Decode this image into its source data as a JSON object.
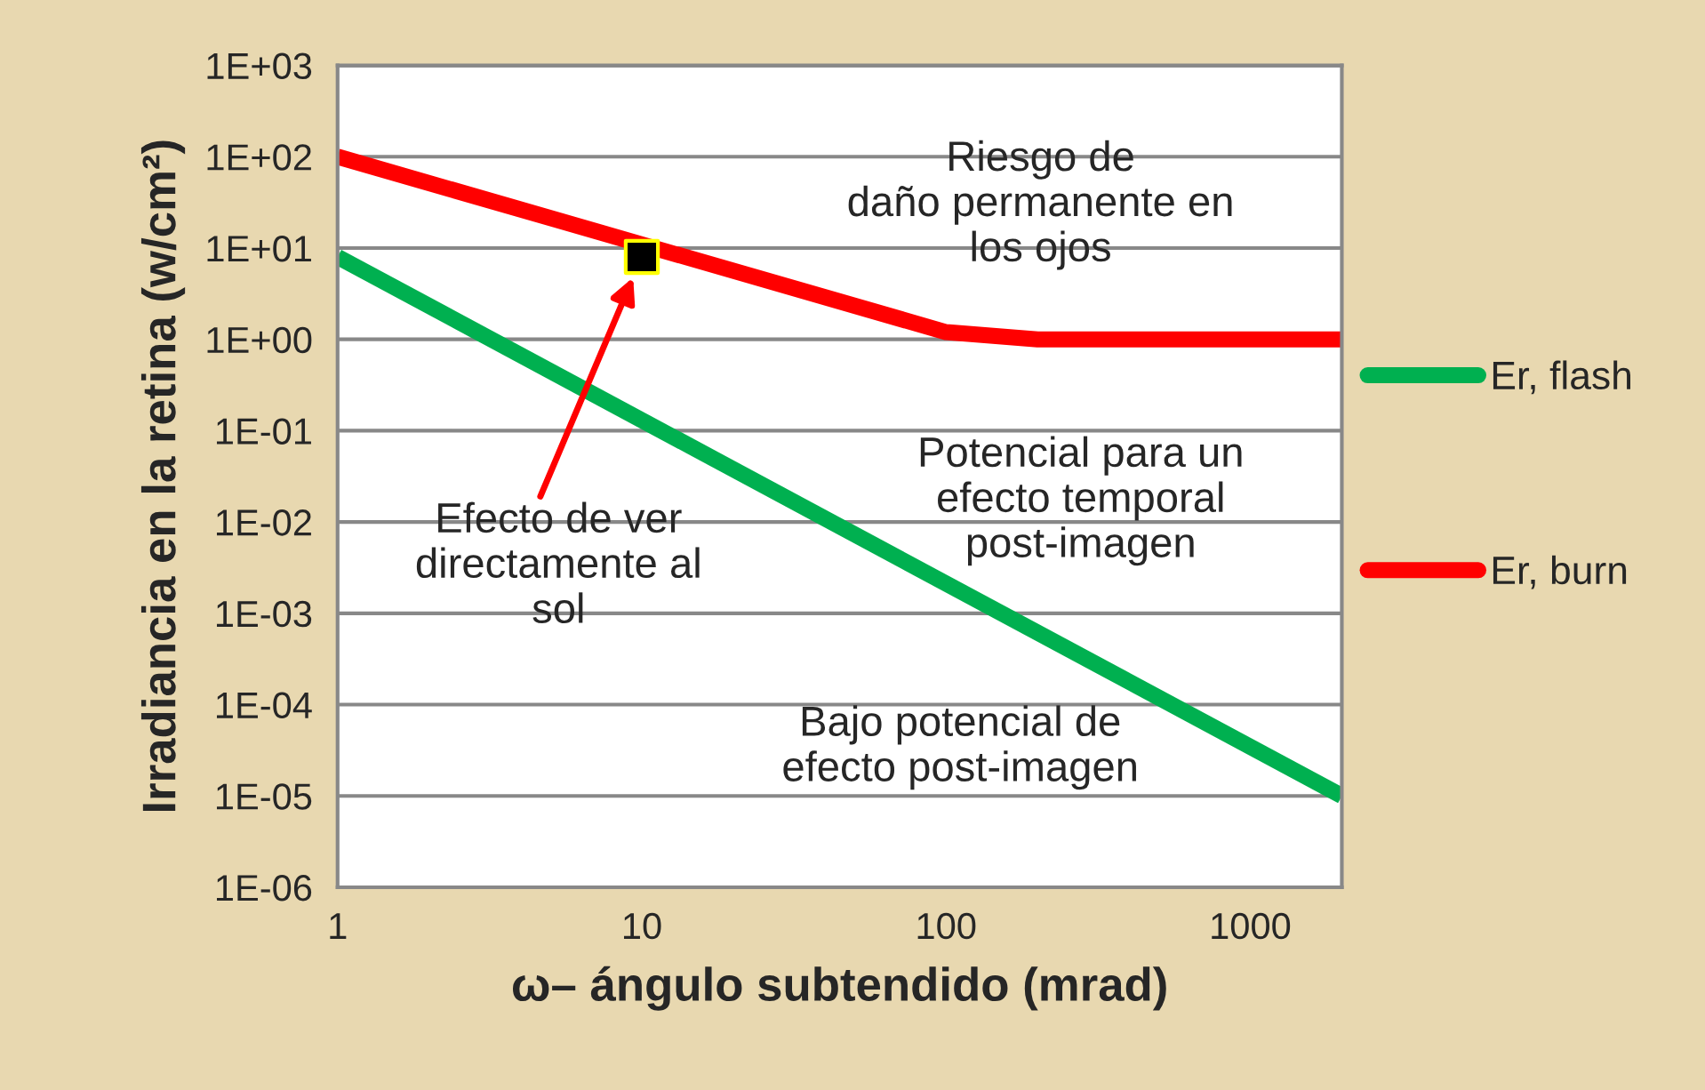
{
  "chart_data": {
    "type": "line",
    "xlabel": "ω– ángulo subtendido (mrad)",
    "ylabel": "Irradiancia en la retina (w/cm²)",
    "log": "xy",
    "grid": "y",
    "legend": "right",
    "xlim": [
      1,
      2000
    ],
    "xticks": [
      1,
      10,
      100,
      1000
    ],
    "ylim": [
      1e-06,
      1000
    ],
    "yticks": [
      {
        "value": 1e-06,
        "label": "1E-06"
      },
      {
        "value": 1e-05,
        "label": "1E-05"
      },
      {
        "value": 0.0001,
        "label": "1E-04"
      },
      {
        "value": 0.001,
        "label": "1E-03"
      },
      {
        "value": 0.01,
        "label": "1E-02"
      },
      {
        "value": 0.1,
        "label": "1E-01"
      },
      {
        "value": 1,
        "label": "1E+00"
      },
      {
        "value": 10,
        "label": "1E+01"
      },
      {
        "value": 100,
        "label": "1E+02"
      },
      {
        "value": 1000,
        "label": "1E+03"
      }
    ],
    "series": [
      {
        "name": "Er, flash",
        "color": "#00b050",
        "x": [
          1,
          2000
        ],
        "values": [
          8,
          1e-05
        ]
      },
      {
        "name": "Er, burn",
        "color": "#ff0000",
        "x": [
          1,
          100,
          200,
          2000
        ],
        "values": [
          100,
          1.2,
          1,
          1
        ]
      },
      {
        "type": "scatter",
        "color": "#000000",
        "marker": "square",
        "x": [
          10
        ],
        "values": [
          8
        ]
      }
    ],
    "annotations": [
      "Efecto de ver\ndirectamente al\nsol",
      "Riesgo de\ndaño permanente en\nlos ojos",
      "Potencial para un\nefecto temporal\npost-imagen",
      "Bajo potencial de\nefecto post-imagen"
    ]
  }
}
